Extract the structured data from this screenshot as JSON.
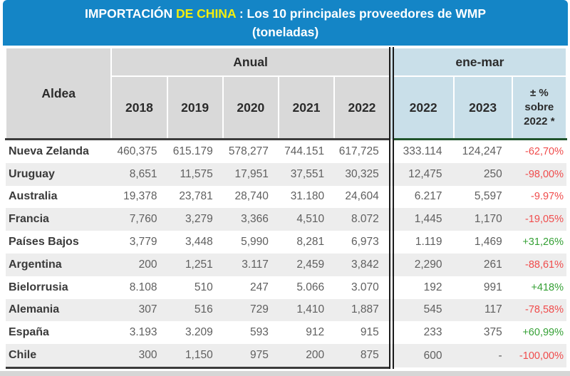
{
  "title": {
    "prefix": "IMPORTACIÓN",
    "highlight": "DE CHINA",
    "suffix": ": Los 10 principales proveedores de WMP",
    "subtitle": "(toneladas)"
  },
  "header": {
    "country_col": "Aldea",
    "anual_group": "Anual",
    "enemar_group": "ene-mar",
    "anual_years": [
      "2018",
      "2019",
      "2020",
      "2021",
      "2022"
    ],
    "enemar_years": [
      "2022",
      "2023"
    ],
    "pct_col": "± %\nsobre\n2022 *"
  },
  "colors": {
    "title_bg": "#1485c6",
    "title_highlight": "#f5ee0c",
    "header_bg": "#d9d9d9",
    "enemar_bg": "#c9dfe9",
    "negative": "#f04c4c",
    "positive": "#35a035",
    "separator": "#1b1b1b",
    "header_border_left": "#3b3b3b",
    "header_border_right": "#20542c"
  },
  "chart_data": {
    "type": "table",
    "title": "IMPORTACIÓN DE CHINA : Los 10 principales proveedores de WMP (toneladas)",
    "unit": "toneladas",
    "column_groups": [
      "Anual",
      "ene-mar"
    ],
    "columns": [
      "Aldea",
      "2018",
      "2019",
      "2020",
      "2021",
      "2022",
      "2022 (ene-mar)",
      "2023 (ene-mar)",
      "± % sobre 2022 *"
    ],
    "rows": [
      {
        "country": "Nueva Zelanda",
        "anual": [
          "460,375",
          "615.179",
          "578,277",
          "744.151",
          "617,725"
        ],
        "ene_mar": [
          "333.114",
          "124,247"
        ],
        "pct": "-62,70%",
        "trend": "negative"
      },
      {
        "country": "Uruguay",
        "anual": [
          "8,651",
          "11,575",
          "17,951",
          "37,551",
          "30,325"
        ],
        "ene_mar": [
          "12,475",
          "250"
        ],
        "pct": "-98,00%",
        "trend": "negative"
      },
      {
        "country": "Australia",
        "anual": [
          "19,378",
          "23,781",
          "28,740",
          "31.180",
          "24,604"
        ],
        "ene_mar": [
          "6.217",
          "5,597"
        ],
        "pct": "-9.97%",
        "trend": "negative"
      },
      {
        "country": "Francia",
        "anual": [
          "7,760",
          "3,279",
          "3,366",
          "4,510",
          "8.072"
        ],
        "ene_mar": [
          "1,445",
          "1,170"
        ],
        "pct": "-19,05%",
        "trend": "negative"
      },
      {
        "country": "Países Bajos",
        "anual": [
          "3,779",
          "3,448",
          "5,990",
          "8,281",
          "6,973"
        ],
        "ene_mar": [
          "1.119",
          "1,469"
        ],
        "pct": "+31,26%",
        "trend": "positive"
      },
      {
        "country": "Argentina",
        "anual": [
          "200",
          "1,251",
          "3.117",
          "2,459",
          "3,842"
        ],
        "ene_mar": [
          "2,290",
          "261"
        ],
        "pct": "-88,61%",
        "trend": "negative"
      },
      {
        "country": "Bielorrusia",
        "anual": [
          "8.108",
          "510",
          "247",
          "5.066",
          "3.070"
        ],
        "ene_mar": [
          "192",
          "991"
        ],
        "pct": "+418%",
        "trend": "positive"
      },
      {
        "country": "Alemania",
        "anual": [
          "307",
          "516",
          "729",
          "1,410",
          "1,887"
        ],
        "ene_mar": [
          "545",
          "117"
        ],
        "pct": "-78,58%",
        "trend": "negative"
      },
      {
        "country": "España",
        "anual": [
          "3.193",
          "3.209",
          "593",
          "912",
          "915"
        ],
        "ene_mar": [
          "233",
          "375"
        ],
        "pct": "+60,99%",
        "trend": "positive"
      },
      {
        "country": "Chile",
        "anual": [
          "300",
          "1,150",
          "975",
          "200",
          "875"
        ],
        "ene_mar": [
          "600",
          "-"
        ],
        "pct": "-100,00%",
        "trend": "negative"
      }
    ]
  }
}
